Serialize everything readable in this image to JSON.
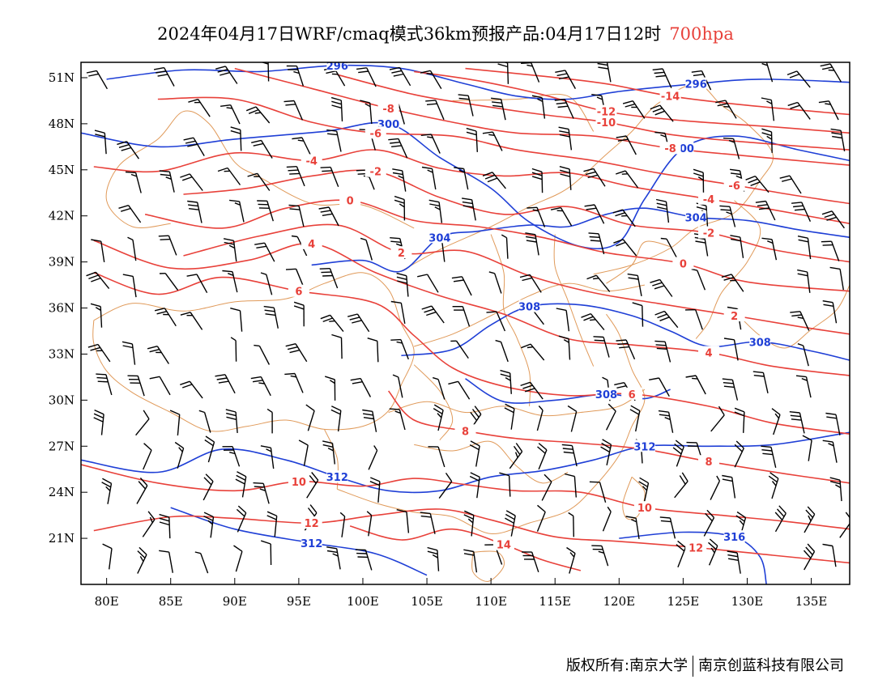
{
  "title": {
    "main": "2024年04月17日WRF/cmaq模式36km预报产品:04月17日12时",
    "level": "700hpa"
  },
  "colors": {
    "temperature": "#e8413a",
    "height": "#1f3fd6",
    "boundary": "#e09a5a",
    "barb": "#000000"
  },
  "axes": {
    "lon_range": [
      78,
      138
    ],
    "lat_range": [
      18,
      52
    ],
    "x_ticks": [
      "80E",
      "85E",
      "90E",
      "95E",
      "100E",
      "105E",
      "110E",
      "115E",
      "120E",
      "125E",
      "130E",
      "135E"
    ],
    "x_values": [
      80,
      85,
      90,
      95,
      100,
      105,
      110,
      115,
      120,
      125,
      130,
      135
    ],
    "y_ticks": [
      "51N",
      "48N",
      "45N",
      "42N",
      "39N",
      "36N",
      "33N",
      "30N",
      "27N",
      "24N",
      "21N"
    ],
    "y_values": [
      51,
      48,
      45,
      42,
      39,
      36,
      33,
      30,
      27,
      24,
      21
    ]
  },
  "temperature_contours": [
    {
      "label": "-14",
      "points": [
        [
          108,
          51.6
        ],
        [
          114,
          51.1
        ],
        [
          119,
          50.6
        ],
        [
          124,
          49.8
        ],
        [
          130,
          49.2
        ],
        [
          138,
          48.6
        ]
      ]
    },
    {
      "label": "-12",
      "points": [
        [
          104,
          51.4
        ],
        [
          109,
          50.8
        ],
        [
          114,
          49.9
        ],
        [
          119,
          48.8
        ],
        [
          125,
          48.2
        ],
        [
          132,
          47.8
        ],
        [
          138,
          47.4
        ]
      ]
    },
    {
      "label": "-10",
      "points": [
        [
          98,
          51.2
        ],
        [
          104,
          49.9
        ],
        [
          109,
          49.2
        ],
        [
          114,
          48.6
        ],
        [
          119,
          48.1
        ],
        [
          124,
          47.3
        ],
        [
          130,
          46.8
        ],
        [
          138,
          46.3
        ]
      ]
    },
    {
      "label": "-8",
      "points": [
        [
          90,
          51.6
        ],
        [
          96,
          50.3
        ],
        [
          102,
          49.0
        ],
        [
          107,
          48.1
        ],
        [
          112,
          47.4
        ],
        [
          118,
          47.2
        ],
        [
          124,
          46.4
        ],
        [
          130,
          45.9
        ],
        [
          138,
          45.3
        ]
      ]
    },
    {
      "label": "-6",
      "points": [
        [
          84,
          49.6
        ],
        [
          90,
          49.6
        ],
        [
          96,
          48.1
        ],
        [
          101,
          47.4
        ],
        [
          107,
          47.2
        ],
        [
          112,
          46.3
        ],
        [
          118,
          45.6
        ],
        [
          123,
          44.8
        ],
        [
          129,
          44.0
        ],
        [
          134,
          43.3
        ],
        [
          138,
          42.8
        ]
      ]
    },
    {
      "label": "-4",
      "points": [
        [
          79,
          45.2
        ],
        [
          84,
          44.9
        ],
        [
          90,
          46.1
        ],
        [
          96,
          45.6
        ],
        [
          101,
          46.3
        ],
        [
          106,
          45.1
        ],
        [
          111,
          44.6
        ],
        [
          116,
          44.8
        ],
        [
          121,
          43.9
        ],
        [
          127,
          43.1
        ],
        [
          132,
          42.4
        ],
        [
          138,
          41.5
        ]
      ]
    },
    {
      "label": "-2",
      "points": [
        [
          86,
          43.4
        ],
        [
          91,
          43.8
        ],
        [
          96,
          44.6
        ],
        [
          101,
          44.9
        ],
        [
          106,
          43.2
        ],
        [
          111,
          42.1
        ],
        [
          116,
          42.6
        ],
        [
          121,
          41.4
        ],
        [
          127,
          40.9
        ],
        [
          132,
          39.8
        ],
        [
          138,
          39.0
        ]
      ]
    },
    {
      "label": "0",
      "points": [
        [
          83,
          42.1
        ],
        [
          89,
          41.2
        ],
        [
          94,
          42.5
        ],
        [
          99,
          43.0
        ],
        [
          104,
          41.7
        ],
        [
          109,
          41.3
        ],
        [
          114,
          40.6
        ],
        [
          119,
          39.6
        ],
        [
          125,
          38.9
        ],
        [
          130,
          37.7
        ],
        [
          138,
          37.1
        ]
      ]
    },
    {
      "label": "2",
      "points": [
        [
          86,
          39.4
        ],
        [
          92,
          40.7
        ],
        [
          98,
          41.4
        ],
        [
          103,
          39.6
        ],
        [
          108,
          39.7
        ],
        [
          113,
          38.1
        ],
        [
          118,
          37.0
        ],
        [
          123,
          36.3
        ],
        [
          129,
          35.5
        ],
        [
          134,
          34.8
        ],
        [
          138,
          34.3
        ]
      ]
    },
    {
      "label": "4",
      "points": [
        [
          79,
          40.4
        ],
        [
          85,
          38.6
        ],
        [
          91,
          39.1
        ],
        [
          96,
          40.2
        ],
        [
          101,
          38.3
        ],
        [
          106,
          36.8
        ],
        [
          111,
          35.6
        ],
        [
          116,
          34.0
        ],
        [
          121,
          33.6
        ],
        [
          127,
          33.1
        ],
        [
          132,
          32.2
        ],
        [
          138,
          31.6
        ]
      ]
    },
    {
      "label": "6",
      "points": [
        [
          79,
          38.3
        ],
        [
          84,
          36.9
        ],
        [
          89,
          38.0
        ],
        [
          95,
          37.1
        ],
        [
          101,
          36.3
        ],
        [
          104,
          34.2
        ],
        [
          107,
          32.1
        ],
        [
          111,
          30.9
        ],
        [
          116,
          30.3
        ],
        [
          121,
          30.4
        ],
        [
          127,
          29.6
        ],
        [
          132,
          28.5
        ],
        [
          138,
          27.8
        ]
      ]
    },
    {
      "label": "8",
      "points": [
        [
          102,
          30.6
        ],
        [
          104,
          28.7
        ],
        [
          108,
          28.0
        ],
        [
          112,
          27.5
        ],
        [
          117,
          27.2
        ],
        [
          122,
          26.8
        ],
        [
          127,
          26.0
        ],
        [
          133,
          25.2
        ],
        [
          138,
          24.6
        ]
      ]
    },
    {
      "label": "10",
      "points": [
        [
          78,
          25.8
        ],
        [
          84,
          24.6
        ],
        [
          90,
          24.1
        ],
        [
          95,
          24.7
        ],
        [
          100,
          24.4
        ],
        [
          104,
          24.9
        ],
        [
          108,
          24.5
        ],
        [
          112,
          24.1
        ],
        [
          117,
          24.0
        ],
        [
          122,
          23.0
        ],
        [
          128,
          22.5
        ],
        [
          133,
          22.1
        ],
        [
          138,
          21.6
        ]
      ]
    },
    {
      "label": "12",
      "points": [
        [
          79,
          21.5
        ],
        [
          85,
          22.4
        ],
        [
          90,
          22.3
        ],
        [
          96,
          22.0
        ],
        [
          101,
          22.5
        ],
        [
          106,
          22.9
        ],
        [
          110,
          22.2
        ],
        [
          115,
          21.1
        ],
        [
          120,
          20.8
        ],
        [
          126,
          20.4
        ],
        [
          132,
          19.9
        ],
        [
          138,
          19.4
        ]
      ]
    },
    {
      "label": "14",
      "points": [
        [
          99,
          21.8
        ],
        [
          103,
          20.9
        ],
        [
          107,
          21.6
        ],
        [
          111,
          20.6
        ],
        [
          114,
          19.6
        ],
        [
          117,
          18.9
        ]
      ]
    }
  ],
  "height_contours": [
    {
      "label": "296",
      "points": [
        [
          80,
          50.9
        ],
        [
          86,
          51.5
        ],
        [
          92,
          51.4
        ],
        [
          98,
          51.8
        ],
        [
          103,
          51.6
        ],
        [
          108,
          50.6
        ],
        [
          112,
          49.8
        ],
        [
          116,
          49.6
        ],
        [
          120,
          50.1
        ],
        [
          126,
          50.6
        ],
        [
          131,
          50.9
        ],
        [
          138,
          50.7
        ]
      ]
    },
    {
      "label": "300",
      "points": [
        [
          78,
          47.4
        ],
        [
          84,
          46.5
        ],
        [
          90,
          47.0
        ],
        [
          97,
          47.5
        ],
        [
          102,
          48.0
        ],
        [
          106,
          45.8
        ],
        [
          110,
          43.8
        ],
        [
          113,
          41.6
        ],
        [
          117,
          40.0
        ],
        [
          120,
          40.3
        ],
        [
          122,
          43.1
        ],
        [
          125,
          46.4
        ],
        [
          129,
          47.2
        ],
        [
          134,
          46.3
        ],
        [
          138,
          45.6
        ]
      ]
    },
    {
      "label": "304",
      "points": [
        [
          96,
          38.8
        ],
        [
          100,
          39.1
        ],
        [
          103,
          38.4
        ],
        [
          106,
          40.6
        ],
        [
          109,
          41.0
        ],
        [
          113,
          41.4
        ],
        [
          116,
          41.3
        ],
        [
          119,
          42.1
        ],
        [
          122,
          42.5
        ],
        [
          126,
          41.9
        ],
        [
          130,
          41.7
        ],
        [
          134,
          41.1
        ],
        [
          138,
          40.6
        ]
      ]
    },
    {
      "label": "308",
      "points": [
        [
          103,
          32.9
        ],
        [
          107,
          33.3
        ],
        [
          110,
          34.9
        ],
        [
          113,
          36.1
        ],
        [
          117,
          36.2
        ],
        [
          121,
          35.5
        ],
        [
          124,
          34.5
        ],
        [
          127,
          33.5
        ],
        [
          131,
          33.8
        ],
        [
          135,
          33.2
        ],
        [
          138,
          32.6
        ]
      ]
    },
    {
      "label": "308",
      "points": [
        [
          108,
          31.4
        ],
        [
          111,
          29.9
        ],
        [
          115,
          30.0
        ],
        [
          119,
          30.4
        ],
        [
          122,
          30.1
        ],
        [
          124,
          30.7
        ]
      ]
    },
    {
      "label": "312",
      "points": [
        [
          78,
          26.1
        ],
        [
          84,
          25.3
        ],
        [
          89,
          26.8
        ],
        [
          94,
          26.1
        ],
        [
          98,
          25.0
        ],
        [
          102,
          24.1
        ],
        [
          106,
          24.1
        ],
        [
          110,
          25.0
        ],
        [
          114,
          25.4
        ],
        [
          118,
          26.1
        ],
        [
          122,
          27.0
        ],
        [
          127,
          27.0
        ],
        [
          132,
          27.1
        ],
        [
          138,
          27.9
        ]
      ]
    },
    {
      "label": "316",
      "points": [
        [
          120,
          21.0
        ],
        [
          125,
          21.4
        ],
        [
          129,
          21.1
        ],
        [
          131,
          19.8
        ],
        [
          131.5,
          18.0
        ]
      ]
    },
    {
      "label": "312",
      "points": [
        [
          85,
          23.0
        ],
        [
          90,
          21.6
        ],
        [
          96,
          20.7
        ],
        [
          101,
          20.0
        ],
        [
          105,
          18.6
        ]
      ]
    }
  ],
  "footer": {
    "left": "版权所有:南京大学",
    "right": "南京创蓝科技有限公司"
  }
}
